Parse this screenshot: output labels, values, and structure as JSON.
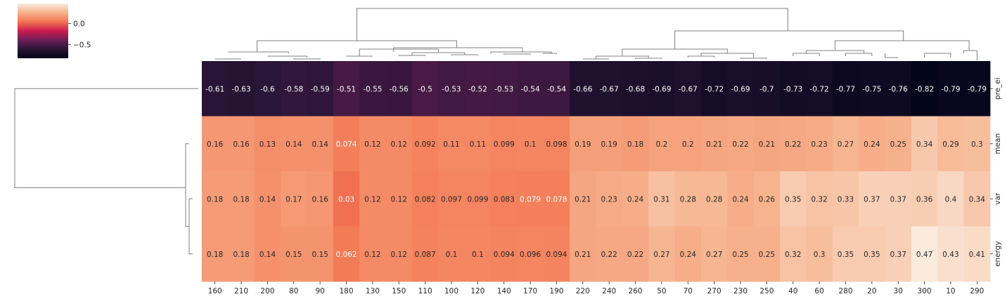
{
  "chart_data": {
    "type": "heatmap",
    "title": "",
    "xlabel": "",
    "ylabel": "",
    "columns": [
      "160",
      "210",
      "200",
      "80",
      "90",
      "180",
      "130",
      "150",
      "110",
      "100",
      "120",
      "140",
      "170",
      "190",
      "220",
      "240",
      "260",
      "50",
      "70",
      "270",
      "230",
      "250",
      "40",
      "60",
      "280",
      "20",
      "30",
      "300",
      "10",
      "290"
    ],
    "rows": [
      "pre_ei",
      "mean",
      "var",
      "energy"
    ],
    "values": [
      [
        -0.61,
        -0.63,
        -0.6,
        -0.58,
        -0.59,
        -0.51,
        -0.55,
        -0.56,
        -0.5,
        -0.53,
        -0.52,
        -0.53,
        -0.54,
        -0.54,
        -0.66,
        -0.67,
        -0.68,
        -0.69,
        -0.67,
        -0.72,
        -0.69,
        -0.7,
        -0.73,
        -0.72,
        -0.77,
        -0.75,
        -0.76,
        -0.82,
        -0.79,
        -0.79
      ],
      [
        0.16,
        0.16,
        0.13,
        0.14,
        0.14,
        0.074,
        0.12,
        0.12,
        0.092,
        0.11,
        0.11,
        0.099,
        0.1,
        0.098,
        0.19,
        0.19,
        0.18,
        0.2,
        0.2,
        0.21,
        0.22,
        0.21,
        0.22,
        0.23,
        0.27,
        0.24,
        0.25,
        0.34,
        0.29,
        0.3
      ],
      [
        0.18,
        0.18,
        0.14,
        0.17,
        0.16,
        0.03,
        0.12,
        0.12,
        0.082,
        0.097,
        0.099,
        0.083,
        0.079,
        0.078,
        0.21,
        0.23,
        0.24,
        0.31,
        0.28,
        0.28,
        0.24,
        0.26,
        0.35,
        0.32,
        0.33,
        0.37,
        0.37,
        0.36,
        0.4,
        0.34
      ],
      [
        0.18,
        0.18,
        0.14,
        0.15,
        0.15,
        0.062,
        0.12,
        0.12,
        0.087,
        0.1,
        0.1,
        0.094,
        0.096,
        0.094,
        0.21,
        0.22,
        0.22,
        0.27,
        0.24,
        0.27,
        0.25,
        0.25,
        0.32,
        0.3,
        0.35,
        0.35,
        0.37,
        0.47,
        0.43,
        0.41
      ]
    ],
    "colormap": "rocket",
    "colorbar": {
      "range": [
        -0.82,
        0.47
      ],
      "ticks": [
        0.0,
        -0.5
      ],
      "tick_labels": [
        "0.0",
        "−0.5"
      ]
    },
    "col_dendrogram_groups": [
      [
        0,
        4
      ],
      [
        5,
        13
      ],
      [
        14,
        21
      ],
      [
        22,
        26
      ],
      [
        27,
        29
      ]
    ],
    "row_dendrogram": "pre_ei separated from (mean, var, energy)"
  }
}
